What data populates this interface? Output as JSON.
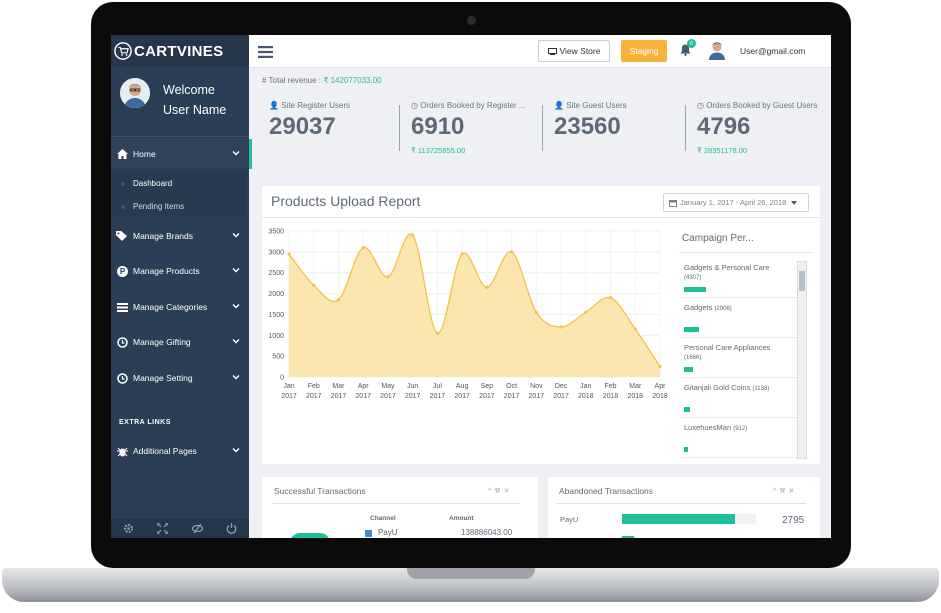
{
  "sidebar": {
    "brand": "CARTVINES",
    "welcome_line1": "Welcome",
    "welcome_line2": "User Name",
    "menu": [
      {
        "label": "Home",
        "icon": "home-icon"
      },
      {
        "label": "Manage Brands",
        "icon": "tag-icon"
      },
      {
        "label": "Manage Products",
        "icon": "product-icon"
      },
      {
        "label": "Manage Categories",
        "icon": "list-icon"
      },
      {
        "label": "Manage Gifting",
        "icon": "clock-icon"
      },
      {
        "label": "Manage Setting",
        "icon": "clock-icon"
      }
    ],
    "submenu": [
      "Dashboard",
      "Pending Items"
    ],
    "extra_links_heading": "EXTRA LINKS",
    "additional_pages": "Additional Pages"
  },
  "topbar": {
    "view_store": "View Store",
    "staging": "Staging",
    "notification_count": "6",
    "user_email": "User@gmail.com"
  },
  "stats": {
    "total_revenue_label": "Total revenue :",
    "total_revenue_value": "₹ 142077033.00",
    "cards": [
      {
        "label": "Site Register Users",
        "value": "29037",
        "sub": ""
      },
      {
        "label": "Orders Booked by Register ...",
        "value": "6910",
        "sub": "₹ 113725855.00"
      },
      {
        "label": "Site Guest Users",
        "value": "23560",
        "sub": ""
      },
      {
        "label": "Orders Booked by Guest Users",
        "value": "4796",
        "sub": "₹ 28351178.00"
      }
    ]
  },
  "report": {
    "title": "Products Upload Report",
    "date_range": "January 1, 2017 - April 26, 2018",
    "campaign_title": "Campaign Per..."
  },
  "campaigns": [
    {
      "name": "Gadgets & Personal Care",
      "count": "(4307)",
      "fraction": 0.2
    },
    {
      "name": "Gadgets",
      "count": "(2906)",
      "fraction": 0.14
    },
    {
      "name": "Personal Care Appliances",
      "count": "(1666)",
      "fraction": 0.08
    },
    {
      "name": "Gitanjali Gold Coins",
      "count": "(1138)",
      "fraction": 0.05
    },
    {
      "name": "LuxehuesMan",
      "count": "(912)",
      "fraction": 0.04
    }
  ],
  "chart_data": {
    "type": "area",
    "x_categories": [
      "Jan 2017",
      "Feb 2017",
      "Mar 2017",
      "Apr 2017",
      "May 2017",
      "Jun 2017",
      "Jul 2017",
      "Aug 2017",
      "Sep 2017",
      "Oct 2017",
      "Nov 2017",
      "Dec 2017",
      "Jan 2018",
      "Feb 2018",
      "Mar 2018",
      "Apr 2018"
    ],
    "x_tick_month": [
      "Jan",
      "Feb",
      "Mar",
      "Apr",
      "May",
      "Jun",
      "Jul",
      "Aug",
      "Sep",
      "Oct",
      "Nov",
      "Dec",
      "Jan",
      "Feb",
      "Mar",
      "Apr"
    ],
    "x_tick_year": [
      "2017",
      "2017",
      "2017",
      "2017",
      "2017",
      "2017",
      "2017",
      "2017",
      "2017",
      "2017",
      "2017",
      "2017",
      "2018",
      "2018",
      "2018",
      "2018"
    ],
    "series": [
      {
        "values": [
          2950,
          2200,
          1850,
          3100,
          2400,
          3400,
          1050,
          2950,
          2150,
          3000,
          1550,
          1200,
          1550,
          1900,
          1150,
          250
        ]
      }
    ],
    "y_ticks": [
      "0",
      "500",
      "1000",
      "1500",
      "2000",
      "2500",
      "3000",
      "3500"
    ],
    "ylim": [
      0,
      3500
    ],
    "fill_color": "#fbe3a6",
    "line_color": "#f5c14a",
    "grid": true
  },
  "successful": {
    "title": "Successful Transactions",
    "col_channel": "Channel",
    "col_amount": "Amount",
    "rows": [
      {
        "channel": "PayU",
        "amount": "138886043.00"
      }
    ]
  },
  "abandoned": {
    "title": "Abandoned Transactions",
    "rows": [
      {
        "label": "PayU",
        "value": "2795",
        "fraction": 0.84
      }
    ]
  },
  "colors": {
    "accent": "#1fbf9a",
    "sidebar": "#2c3e55",
    "staging": "#f7b23b"
  }
}
